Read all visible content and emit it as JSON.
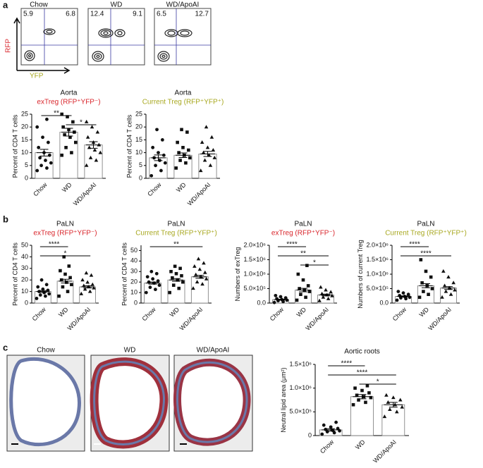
{
  "panel_labels": [
    "a",
    "b",
    "c"
  ],
  "flow": {
    "y_label": "RFP",
    "x_label": "YFP",
    "panels": [
      {
        "title": "Chow",
        "upper_left": 5.9,
        "upper_right": 6.8
      },
      {
        "title": "WD",
        "upper_left": 12.4,
        "upper_right": 9.1
      },
      {
        "title": "WD/ApoAI",
        "upper_left": 6.5,
        "upper_right": 12.7
      }
    ]
  },
  "histology": {
    "titles": [
      "Chow",
      "WD",
      "WD/ApoAI"
    ]
  },
  "chart_data": [
    {
      "type": "dotplot",
      "title": "Aorta",
      "subtitle": "exTreg (RFP⁺YFP⁻)",
      "subtitle_color": "#d9262c",
      "ylabel": "Percent of  CD4 T cells",
      "categories": [
        "Chow",
        "WD",
        "WD/ApoAI"
      ],
      "markers": [
        "circle",
        "square",
        "triangle"
      ],
      "points": [
        [
          3,
          4,
          5,
          6,
          7,
          8,
          9,
          10,
          12,
          14,
          16,
          20,
          23
        ],
        [
          9,
          10,
          12,
          14,
          16,
          17,
          18,
          19,
          20,
          22,
          24,
          25
        ],
        [
          5,
          7,
          8,
          10,
          11,
          12,
          13,
          14,
          16,
          18,
          20,
          22
        ]
      ],
      "means": [
        10,
        18,
        13
      ],
      "errors": [
        1.3,
        1.5,
        1.3
      ],
      "ylim": [
        0,
        25
      ],
      "yticks": [
        0,
        5,
        10,
        15,
        20,
        25
      ],
      "annotations": [
        {
          "between": [
            "Chow",
            "WD"
          ],
          "label": "**"
        },
        {
          "between": [
            "WD",
            "WD/ApoAI"
          ],
          "label": "*"
        }
      ]
    },
    {
      "type": "dotplot",
      "title": "Aorta",
      "subtitle": "Current Treg (RFP⁺YFP⁺)",
      "subtitle_color": "#a8a820",
      "ylabel": "Percent of  CD4 T cells",
      "categories": [
        "Chow",
        "WD",
        "WD/ApoAI"
      ],
      "markers": [
        "circle",
        "square",
        "triangle"
      ],
      "points": [
        [
          1,
          3,
          5,
          6,
          7,
          8,
          9,
          10,
          12,
          15,
          19
        ],
        [
          4,
          6,
          7,
          8,
          9,
          10,
          11,
          12,
          14,
          18,
          19
        ],
        [
          3,
          5,
          7,
          8,
          9,
          10,
          11,
          12,
          14,
          16,
          20
        ]
      ],
      "means": [
        8,
        9,
        9.5
      ],
      "errors": [
        1.1,
        0.9,
        1.0
      ],
      "ylim": [
        0,
        25
      ],
      "yticks": [
        0,
        5,
        10,
        15,
        20,
        25
      ],
      "annotations": []
    },
    {
      "type": "dotplot",
      "title": "PaLN",
      "subtitle": "exTreg (RFP⁺YFP⁻)",
      "subtitle_color": "#d9262c",
      "ylabel": "Percent of CD4 T cells",
      "categories": [
        "Chow",
        "WD",
        "WD/ApoAI"
      ],
      "markers": [
        "circle",
        "square",
        "triangle"
      ],
      "points": [
        [
          4,
          6,
          7,
          8,
          9,
          10,
          11,
          12,
          14,
          16,
          20
        ],
        [
          6,
          10,
          14,
          16,
          18,
          20,
          22,
          25,
          28,
          32,
          40
        ],
        [
          8,
          10,
          12,
          13,
          14,
          15,
          16,
          18,
          20,
          24,
          26
        ]
      ],
      "means": [
        10,
        19,
        14
      ],
      "errors": [
        0.8,
        1.6,
        1.0
      ],
      "ylim": [
        0,
        50
      ],
      "yticks": [
        0,
        10,
        20,
        30,
        40,
        50
      ],
      "annotations": [
        {
          "between": [
            "Chow",
            "WD"
          ],
          "label": "****"
        },
        {
          "between": [
            "Chow",
            "WD/ApoAI"
          ],
          "label": "*"
        }
      ]
    },
    {
      "type": "dotplot",
      "title": "PaLN",
      "subtitle": "Current Treg (RFP⁺YFP⁺)",
      "subtitle_color": "#a8a820",
      "ylabel": "Percent of CD4 T cells",
      "categories": [
        "Chow",
        "WD",
        "WD/ApoAI"
      ],
      "markers": [
        "circle",
        "square",
        "triangle"
      ],
      "points": [
        [
          10,
          13,
          15,
          17,
          19,
          20,
          21,
          23,
          25,
          28,
          30
        ],
        [
          10,
          14,
          17,
          20,
          22,
          24,
          26,
          28,
          30,
          33,
          35
        ],
        [
          14,
          18,
          20,
          23,
          25,
          27,
          29,
          32,
          35,
          38,
          42
        ]
      ],
      "means": [
        19,
        22,
        25
      ],
      "errors": [
        1.0,
        1.3,
        1.4
      ],
      "ylim": [
        0,
        55
      ],
      "yticks": [
        0,
        10,
        20,
        30,
        40,
        50
      ],
      "annotations": [
        {
          "between": [
            "Chow",
            "WD/ApoAI"
          ],
          "label": "**"
        }
      ]
    },
    {
      "type": "dotplot",
      "title": "PaLN",
      "subtitle": "exTreg (RFP⁺YFP⁻)",
      "subtitle_color": "#d9262c",
      "ylabel": "Numbers of  exTreg",
      "categories": [
        "Chow",
        "WD",
        "WD/ApoAI"
      ],
      "markers": [
        "circle",
        "square",
        "triangle"
      ],
      "points": [
        [
          20000,
          50000,
          80000,
          100000,
          120000,
          150000,
          180000,
          220000,
          260000
        ],
        [
          100000,
          200000,
          300000,
          400000,
          450000,
          500000,
          600000,
          800000,
          1000000,
          1300000
        ],
        [
          80000,
          150000,
          200000,
          250000,
          280000,
          320000,
          380000,
          450000,
          550000
        ]
      ],
      "means": [
        120000,
        450000,
        280000
      ],
      "errors": [
        15000,
        60000,
        30000
      ],
      "ylim": [
        0,
        2000000
      ],
      "yticks": [
        {
          "value": 0,
          "label": "0.0"
        },
        {
          "value": 500000,
          "label": "5.0×10⁵"
        },
        {
          "value": 1000000,
          "label": "1.0×10⁶"
        },
        {
          "value": 1500000,
          "label": "1.5×10⁶"
        },
        {
          "value": 2000000,
          "label": "2.0×10⁶"
        }
      ],
      "annotations": [
        {
          "between": [
            "Chow",
            "WD"
          ],
          "label": "****"
        },
        {
          "between": [
            "Chow",
            "WD/ApoAI"
          ],
          "label": "**"
        },
        {
          "between": [
            "WD",
            "WD/ApoAI"
          ],
          "label": "*"
        }
      ]
    },
    {
      "type": "dotplot",
      "title": "PaLN",
      "subtitle": "Current Treg (RFP⁺YFP⁺)",
      "subtitle_color": "#a8a820",
      "ylabel": "Numbers of current Treg",
      "categories": [
        "Chow",
        "WD",
        "WD/ApoAI"
      ],
      "markers": [
        "circle",
        "square",
        "triangle"
      ],
      "points": [
        [
          100000,
          150000,
          180000,
          200000,
          230000,
          260000,
          300000,
          350000,
          400000
        ],
        [
          200000,
          300000,
          400000,
          500000,
          600000,
          700000,
          900000,
          1100000,
          1500000
        ],
        [
          200000,
          300000,
          400000,
          450000,
          520000,
          600000,
          700000,
          900000,
          1100000
        ]
      ],
      "means": [
        230000,
        600000,
        520000
      ],
      "errors": [
        20000,
        70000,
        50000
      ],
      "ylim": [
        0,
        2000000
      ],
      "yticks": [
        {
          "value": 0,
          "label": "0.0"
        },
        {
          "value": 500000,
          "label": "5.0×10⁵"
        },
        {
          "value": 1000000,
          "label": "1.0×10⁶"
        },
        {
          "value": 1500000,
          "label": "1.5×10⁶"
        },
        {
          "value": 2000000,
          "label": "2.0×10⁶"
        }
      ],
      "annotations": [
        {
          "between": [
            "Chow",
            "WD"
          ],
          "label": "****"
        },
        {
          "between": [
            "Chow",
            "WD/ApoAI"
          ],
          "label": "****"
        }
      ]
    },
    {
      "type": "dotplot",
      "title": "Aortic roots",
      "ylabel": "Neutral lipid area (μm²)",
      "categories": [
        "Chow",
        "WD",
        "WD/ApoAI"
      ],
      "markers": [
        "circle",
        "square",
        "triangle"
      ],
      "points": [
        [
          30000,
          60000,
          80000,
          100000,
          110000,
          130000,
          150000,
          180000,
          220000,
          280000
        ],
        [
          650000,
          700000,
          750000,
          800000,
          820000,
          850000,
          900000,
          950000,
          1000000,
          1050000
        ],
        [
          400000,
          500000,
          550000,
          600000,
          650000,
          700000,
          750000,
          800000,
          850000
        ]
      ],
      "means": [
        120000,
        820000,
        650000
      ],
      "errors": [
        25000,
        45000,
        50000
      ],
      "ylim": [
        0,
        1500000
      ],
      "yticks": [
        {
          "value": 0,
          "label": "0"
        },
        {
          "value": 500000,
          "label": "5.0×10⁵"
        },
        {
          "value": 1000000,
          "label": "1.0×10⁶"
        },
        {
          "value": 1500000,
          "label": "1.5×10⁶"
        }
      ],
      "annotations": [
        {
          "between": [
            "Chow",
            "WD"
          ],
          "label": "****"
        },
        {
          "between": [
            "Chow",
            "WD/ApoAI"
          ],
          "label": "****"
        },
        {
          "between": [
            "WD",
            "WD/ApoAI"
          ],
          "label": "*"
        }
      ]
    }
  ]
}
